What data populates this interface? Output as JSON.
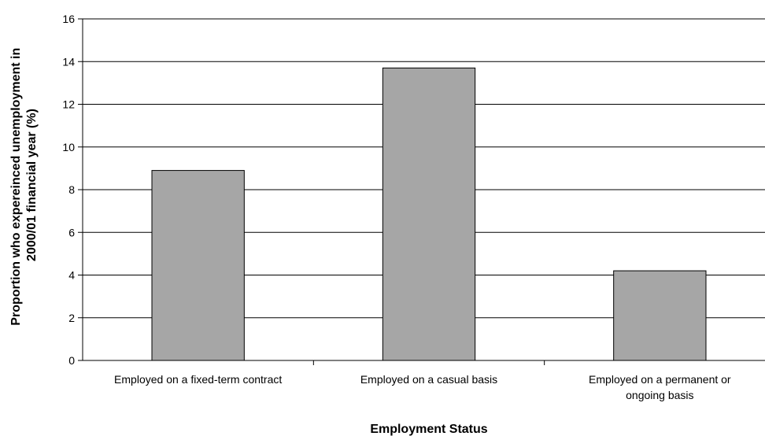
{
  "chart_data": {
    "type": "bar",
    "title": "",
    "categories": [
      [
        "Employed on a fixed-term contract"
      ],
      [
        "Employed on a casual basis"
      ],
      [
        "Employed on a permanent or",
        "ongoing basis"
      ]
    ],
    "values": [
      8.9,
      13.7,
      4.2
    ],
    "xlabel": "Employment Status",
    "ylabel": [
      "Proportion who expereinced unemployment in",
      "2000/01 financial year (%)"
    ],
    "ylim": [
      0,
      16
    ],
    "yticks": [
      "0",
      "2",
      "4",
      "6",
      "8",
      "10",
      "12",
      "14",
      "16"
    ],
    "grid": true,
    "legend": "none",
    "colors": {
      "bar_fill": "#a6a6a6",
      "bar_stroke": "#000000",
      "grid": "#000000",
      "axis": "#000000"
    }
  }
}
